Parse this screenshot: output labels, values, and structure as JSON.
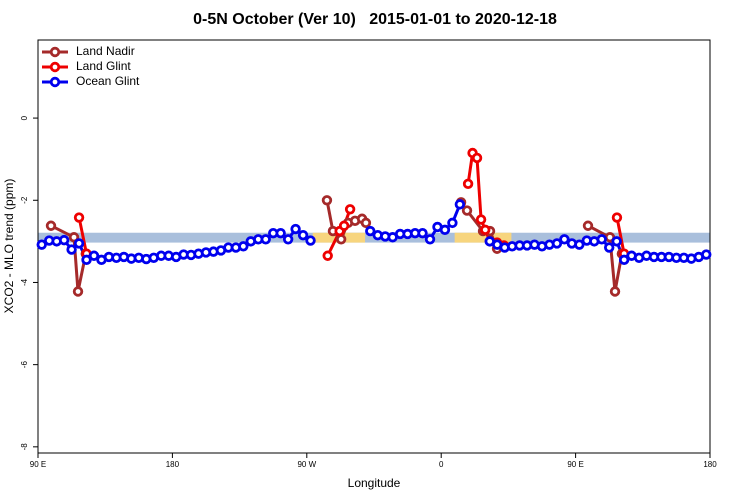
{
  "chart_data": {
    "type": "line",
    "title": "0-5N October (Ver 10)   2015-01-01 to 2020-12-18",
    "x_label": "Longitude",
    "y_label": "XCO2 - MLO trend (ppm)",
    "xlim": [
      90,
      540
    ],
    "xticks": [
      {
        "value": 90,
        "label": "90 E"
      },
      180,
      {
        "value": 270,
        "label": "90 W"
      },
      {
        "value": 360,
        "label": "0"
      },
      {
        "value": 450,
        "label": "90 E"
      },
      {
        "value": 540,
        "label": "180"
      }
    ],
    "ylim": [
      -8.15,
      1.9
    ],
    "yticks": [
      0,
      -2,
      -4,
      -6,
      -8
    ],
    "legend": "top-left",
    "reference_band": {
      "ylim": [
        -3.03,
        -2.79
      ],
      "color": "#a9bfdc",
      "highlights": [
        [
          274,
          309
        ],
        [
          369,
          407
        ]
      ],
      "highlight_color": "#f7d57e"
    },
    "series": [
      {
        "name": "Land Nadir",
        "color": "#a52a2a",
        "x": [
          98.7,
          114.1,
          116.8,
          122,
          200,
          283.5,
          287.5,
          293,
          297.6,
          302.3,
          307,
          309.6,
          340,
          373.3,
          377.3,
          388,
          392.7,
          397.4,
          420,
          458.3,
          473,
          476.4,
          481
        ],
        "values": [
          -2.62,
          -2.9,
          -4.22,
          -3.3,
          null,
          -2.0,
          -2.75,
          -2.95,
          -2.55,
          -2.5,
          -2.45,
          -2.55,
          null,
          -2.05,
          -2.25,
          -2.75,
          -2.75,
          -3.18,
          null,
          -2.62,
          -2.9,
          -4.22,
          -3.3
        ]
      },
      {
        "name": "Land Glint",
        "color": "#ee0000",
        "x": [
          117.5,
          122.5,
          200,
          284,
          292,
          295,
          299,
          340,
          378,
          381,
          384,
          386.7,
          389.5,
          392.7,
          397.4,
          402,
          440,
          477.7,
          482.5
        ],
        "values": [
          -2.42,
          -3.3,
          null,
          -3.35,
          -2.75,
          -2.62,
          -2.22,
          null,
          -1.6,
          -0.85,
          -0.97,
          -2.47,
          -2.72,
          -3.0,
          -3.03,
          -3.1,
          null,
          -2.42,
          -3.3
        ]
      },
      {
        "name": "Ocean Glint",
        "color": "#0000ee",
        "x": [
          92.5,
          97.5,
          102.5,
          107.5,
          112.5,
          117.5,
          122.5,
          127.5,
          132.5,
          137.5,
          142.5,
          147.5,
          152.5,
          157.5,
          162.5,
          167.5,
          172.5,
          177.5,
          182.5,
          187.5,
          192.5,
          197.5,
          202.5,
          207.5,
          212.5,
          217.5,
          222.5,
          227.5,
          232.5,
          237.5,
          242.5,
          247.5,
          252.5,
          257.5,
          262.5,
          267.5,
          272.5,
          292.5,
          312.5,
          317.5,
          322.5,
          327.5,
          332.5,
          337.5,
          342.5,
          347.5,
          352.5,
          357.5,
          362.5,
          367.5,
          372.5,
          382.5,
          392.5,
          397.5,
          402.5,
          407.5,
          412.5,
          417.5,
          422.5,
          427.5,
          432.5,
          437.5,
          442.5,
          447.5,
          452.5,
          457.5,
          462.5,
          467.5,
          472.5,
          477.5,
          482.5,
          487.5,
          492.5,
          497.5,
          502.5,
          507.5,
          512.5,
          517.5,
          522.5,
          527.5,
          532.5,
          537.5
        ],
        "values": [
          -3.08,
          -2.98,
          -3.0,
          -2.97,
          -3.2,
          -3.05,
          -3.45,
          -3.35,
          -3.45,
          -3.38,
          -3.4,
          -3.38,
          -3.42,
          -3.4,
          -3.43,
          -3.4,
          -3.35,
          -3.35,
          -3.38,
          -3.32,
          -3.33,
          -3.3,
          -3.27,
          -3.25,
          -3.22,
          -3.15,
          -3.15,
          -3.12,
          -3.0,
          -2.95,
          -2.95,
          -2.8,
          -2.8,
          -2.95,
          -2.7,
          -2.85,
          -2.98,
          null,
          -2.75,
          -2.85,
          -2.88,
          -2.9,
          -2.82,
          -2.82,
          -2.8,
          -2.8,
          -2.95,
          -2.65,
          -2.72,
          -2.55,
          -2.1,
          null,
          -3.0,
          -3.08,
          -3.15,
          -3.12,
          -3.1,
          -3.1,
          -3.08,
          -3.12,
          -3.08,
          -3.05,
          -2.95,
          -3.05,
          -3.08,
          -2.98,
          -3.0,
          -2.95,
          -3.15,
          -3.0,
          -3.45,
          -3.35,
          -3.4,
          -3.35,
          -3.38,
          -3.38,
          -3.38,
          -3.4,
          -3.4,
          -3.42,
          -3.38,
          -3.32
        ]
      }
    ]
  }
}
